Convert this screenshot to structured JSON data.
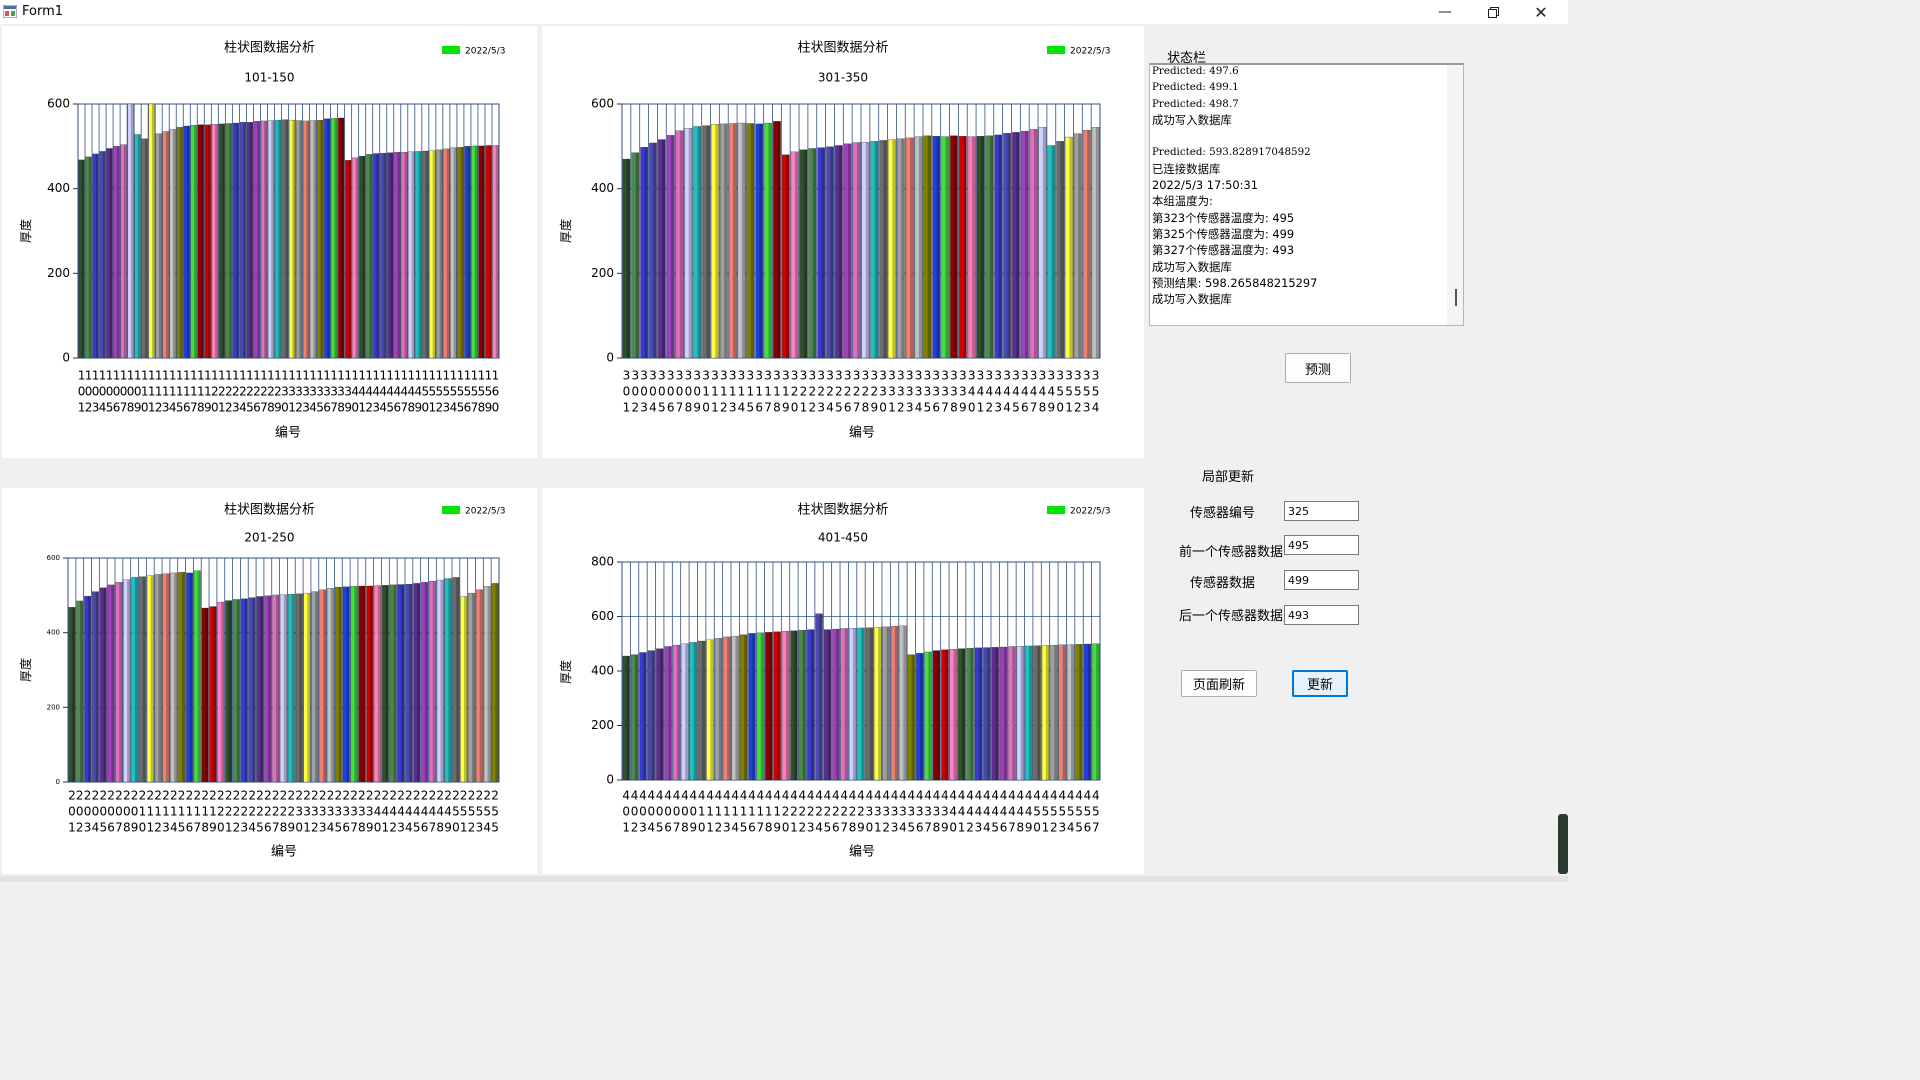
{
  "window": {
    "title": "Form1",
    "controls": [
      "minimize-icon",
      "restore-icon",
      "close-icon"
    ]
  },
  "charts": [
    {
      "title": "柱状图数据分析",
      "subtitle": "101-150",
      "legend": "2022/5/3",
      "ylabel": "厚度",
      "xlabel": "编号",
      "ymax": 600,
      "ticks": [
        0,
        200,
        400,
        600
      ],
      "start": 101,
      "small_ticks": false,
      "values": [
        468,
        475,
        482,
        488,
        495,
        500,
        504,
        620,
        528,
        518,
        605,
        530,
        535,
        540,
        545,
        548,
        550,
        551,
        551,
        552,
        553,
        554,
        555,
        557,
        557,
        559,
        560,
        561,
        562,
        563,
        562,
        561,
        560,
        561,
        562,
        565,
        566,
        567,
        467,
        473,
        477,
        481,
        483,
        484,
        485,
        486,
        486,
        487,
        488,
        489,
        490,
        492,
        494,
        497,
        498,
        500,
        501,
        501,
        502,
        502
      ]
    },
    {
      "title": "柱状图数据分析",
      "subtitle": "301-350",
      "legend": "2022/5/3",
      "ylabel": "厚度",
      "xlabel": "编号",
      "ymax": 600,
      "ticks": [
        0,
        200,
        400,
        600
      ],
      "start": 301,
      "small_ticks": false,
      "values": [
        470,
        485,
        498,
        508,
        516,
        526,
        537,
        543,
        547,
        549,
        552,
        553,
        554,
        555,
        554,
        553,
        555,
        559,
        480,
        487,
        492,
        495,
        497,
        499,
        502,
        506,
        509,
        510,
        512,
        514,
        516,
        518,
        520,
        523,
        525,
        524,
        523,
        525,
        524,
        523,
        524,
        525,
        527,
        531,
        533,
        536,
        540,
        545,
        502,
        512,
        522,
        530,
        538,
        545
      ]
    },
    {
      "title": "柱状图数据分析",
      "subtitle": "201-250",
      "legend": "2022/5/3",
      "ylabel": "厚度",
      "xlabel": "编号",
      "ymax": 600,
      "ticks": [
        0,
        200,
        400,
        600
      ],
      "start": 201,
      "small_ticks": true,
      "values": [
        468,
        485,
        498,
        510,
        520,
        528,
        535,
        542,
        548,
        550,
        553,
        556,
        558,
        560,
        562,
        560,
        566,
        466,
        470,
        482,
        486,
        489,
        491,
        494,
        497,
        499,
        501,
        502,
        503,
        504,
        506,
        510,
        515,
        519,
        522,
        523,
        524,
        525,
        525,
        526,
        527,
        528,
        529,
        530,
        532,
        535,
        538,
        541,
        545,
        548,
        497,
        506,
        515,
        524,
        532
      ]
    },
    {
      "title": "柱状图数据分析",
      "subtitle": "401-450",
      "legend": "2022/5/3",
      "ylabel": "厚度",
      "xlabel": "编号",
      "ymax": 800,
      "ticks": [
        0,
        200,
        400,
        600,
        800
      ],
      "start": 401,
      "small_ticks": false,
      "values": [
        455,
        460,
        468,
        475,
        482,
        490,
        495,
        500,
        505,
        510,
        515,
        520,
        525,
        528,
        533,
        538,
        540,
        542,
        544,
        546,
        548,
        550,
        552,
        610,
        552,
        554,
        556,
        557,
        558,
        559,
        560,
        562,
        564,
        566,
        460,
        465,
        470,
        475,
        478,
        480,
        482,
        484,
        485,
        486,
        487,
        488,
        490,
        491,
        492,
        493,
        494,
        495,
        496,
        497,
        498,
        499,
        500
      ]
    }
  ],
  "status": {
    "label": "状态栏",
    "lines": [
      {
        "text": "Predicted: 497.6",
        "mono": true
      },
      {
        "text": "Predicted: 499.1",
        "mono": true
      },
      {
        "text": "Predicted: 498.7",
        "mono": true
      },
      {
        "text": "成功写入数据库",
        "mono": false
      },
      {
        "text": "",
        "mono": false
      },
      {
        "text": "Predicted: 593.828917048592",
        "mono": true
      },
      {
        "text": "已连接数据库",
        "mono": false
      },
      {
        "text": "2022/5/3 17:50:31",
        "mono": false
      },
      {
        "text": "本组温度为:",
        "mono": false
      },
      {
        "text": "第323个传感器温度为: 495",
        "mono": false
      },
      {
        "text": "第325个传感器温度为: 499",
        "mono": false
      },
      {
        "text": "第327个传感器温度为: 493",
        "mono": false
      },
      {
        "text": "成功写入数据库",
        "mono": false
      },
      {
        "text": "预测结果: 598.265848215297",
        "mono": false
      },
      {
        "text": "成功写入数据库",
        "mono": false
      }
    ]
  },
  "predict_button": "预测",
  "local_update": {
    "title": "局部更新",
    "sensor_id_label": "传感器编号",
    "sensor_id": "325",
    "prev_label": "前一个传感器数据",
    "prev_value": "495",
    "cur_label": "传感器数据",
    "cur_value": "499",
    "next_label": "后一个传感器数据",
    "next_value": "493",
    "refresh_button": "页面刷新",
    "update_button": "更新"
  },
  "colors": {
    "bar_palette": [
      "#2f4f2f",
      "#4b8b4b",
      "#3a3ad0",
      "#4a4ab0",
      "#5b2d8e",
      "#a040c0",
      "#e070c0",
      "#d0d0ff",
      "#20c0c0",
      "#6b6b6b",
      "#ffff40",
      "#a0a0a0",
      "#f08070",
      "#c0c0c0",
      "#808000",
      "#2040e0",
      "#40e040",
      "#8b0000",
      "#d00000",
      "#ff80c0"
    ],
    "legend": "#00e600",
    "axis": "#2f4f7f",
    "accent": "#0078d7"
  }
}
